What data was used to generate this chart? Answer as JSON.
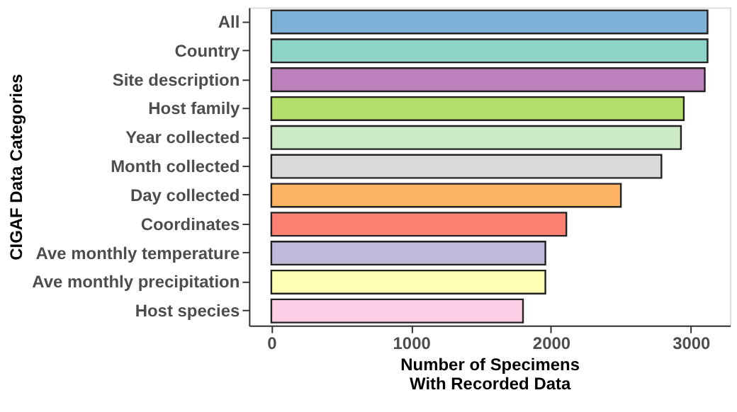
{
  "chart_data": {
    "type": "bar",
    "orientation": "horizontal",
    "xlabel": "Number of Specimens\nWith Recorded Data",
    "ylabel": "CIGAF Data Categories",
    "categories": [
      "All",
      "Country",
      "Site description",
      "Host family",
      "Year collected",
      "Month collected",
      "Day collected",
      "Coordinates",
      "Ave monthly temperature",
      "Ave monthly precipitation",
      "Host species"
    ],
    "values": [
      3120,
      3120,
      3100,
      2950,
      2930,
      2790,
      2500,
      2110,
      1960,
      1960,
      1800
    ],
    "colors": [
      "#7eb1d7",
      "#8dd3c7",
      "#bc80bd",
      "#b3de69",
      "#ccebc5",
      "#d9d9d9",
      "#fdb462",
      "#fb8072",
      "#bebada",
      "#ffffb3",
      "#fccde5"
    ],
    "xlim": [
      -160,
      3280
    ],
    "xticks": [
      0,
      1000,
      2000,
      3000
    ],
    "grid": false,
    "legend": false
  }
}
